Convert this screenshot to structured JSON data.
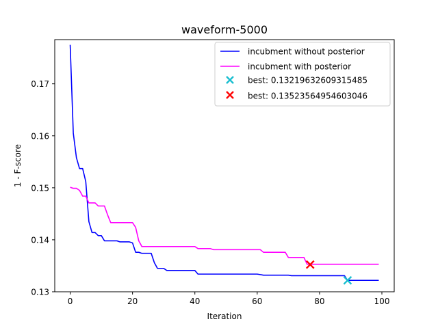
{
  "chart_data": {
    "type": "line",
    "title": "waveform-5000",
    "xlabel": "Iteration",
    "ylabel": "1 - F-score",
    "xlim": [
      -4.95,
      103.95
    ],
    "ylim": [
      0.13,
      0.1785
    ],
    "xticks": [
      0,
      20,
      40,
      60,
      80,
      100
    ],
    "xtick_labels": [
      "0",
      "20",
      "40",
      "60",
      "80",
      "100"
    ],
    "yticks": [
      0.13,
      0.14,
      0.15,
      0.16,
      0.17
    ],
    "ytick_labels": [
      "0.13",
      "0.14",
      "0.15",
      "0.16",
      "0.17"
    ],
    "grid": false,
    "legend_position": "top-right",
    "series": [
      {
        "name": "incubment without posterior",
        "color": "#0000ff",
        "x": [
          0,
          1,
          2,
          3,
          4,
          5,
          6,
          7,
          8,
          9,
          10,
          11,
          15,
          16,
          19,
          20,
          21,
          22,
          23,
          26,
          27,
          28,
          30,
          31,
          40,
          41,
          60,
          61,
          62,
          70,
          71,
          88,
          89,
          99
        ],
        "y": [
          0.1775,
          0.1605,
          0.1558,
          0.1537,
          0.1537,
          0.1512,
          0.1435,
          0.1414,
          0.1414,
          0.1408,
          0.1408,
          0.1398,
          0.1398,
          0.1396,
          0.1396,
          0.1394,
          0.1376,
          0.1376,
          0.1374,
          0.1374,
          0.1356,
          0.1345,
          0.1345,
          0.1341,
          0.1341,
          0.1334,
          0.1334,
          0.1333,
          0.1332,
          0.1332,
          0.1331,
          0.1331,
          0.1322,
          0.1322
        ]
      },
      {
        "name": "incubment with posterior",
        "color": "#ff00ff",
        "x": [
          0,
          1,
          2,
          3,
          4,
          5,
          6,
          7,
          8,
          9,
          10,
          11,
          12,
          13,
          20,
          21,
          22,
          23,
          40,
          41,
          45,
          46,
          61,
          62,
          69,
          70,
          75,
          76,
          99
        ],
        "y": [
          0.1501,
          0.1499,
          0.1499,
          0.1495,
          0.1484,
          0.1484,
          0.1471,
          0.1471,
          0.1471,
          0.1465,
          0.1465,
          0.1465,
          0.1448,
          0.1433,
          0.1433,
          0.1424,
          0.1398,
          0.1387,
          0.1387,
          0.1383,
          0.1383,
          0.1381,
          0.1381,
          0.1376,
          0.1376,
          0.1366,
          0.1366,
          0.1353,
          0.1353
        ]
      }
    ],
    "markers": [
      {
        "label": "best: 0.13219632609315485",
        "x": 89,
        "y": 0.13219632609315485,
        "color": "#17becf"
      },
      {
        "label": "best: 0.13523564954603046",
        "x": 77,
        "y": 0.13523564954603046,
        "color": "#ff0000"
      }
    ]
  }
}
